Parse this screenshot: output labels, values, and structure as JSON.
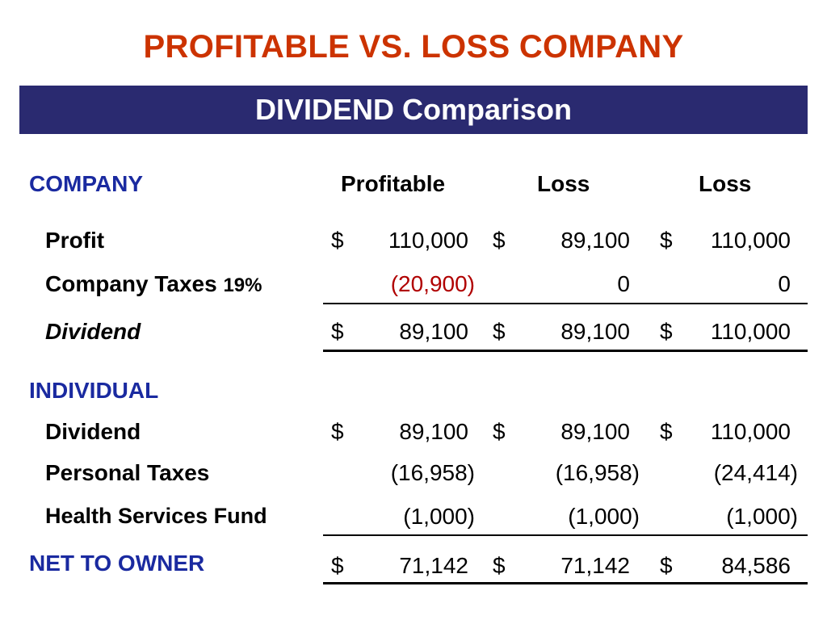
{
  "title": "PROFITABLE VS. LOSS COMPANY",
  "banner": "DIVIDEND Comparison",
  "header": {
    "label": "COMPANY",
    "cols": [
      "Profitable",
      "Loss",
      "Loss"
    ]
  },
  "company": {
    "profit": {
      "label": "Profit",
      "cur": [
        "$",
        "$",
        "$"
      ],
      "values": [
        "110,000",
        "89,100",
        "110,000"
      ]
    },
    "taxes": {
      "label": "Company Taxes",
      "rate": "19%",
      "values": [
        "(20,900)",
        "0",
        "0"
      ]
    },
    "dividend": {
      "label": "Dividend",
      "cur": [
        "$",
        "$",
        "$"
      ],
      "values": [
        "89,100",
        "89,100",
        "110,000"
      ]
    }
  },
  "individual": {
    "label": "INDIVIDUAL",
    "dividend": {
      "label": "Dividend",
      "cur": [
        "$",
        "$",
        "$"
      ],
      "values": [
        "89,100",
        "89,100",
        "110,000"
      ]
    },
    "personal_taxes": {
      "label": "Personal Taxes",
      "values": [
        "(16,958)",
        "(16,958)",
        "(24,414)"
      ]
    },
    "health": {
      "label": "Health Services Fund",
      "values": [
        "(1,000)",
        "(1,000)",
        "(1,000)"
      ]
    }
  },
  "net": {
    "label": "NET TO OWNER",
    "cur": [
      "$",
      "$",
      "$"
    ],
    "values": [
      "71,142",
      "71,142",
      "84,586"
    ]
  },
  "colors": {
    "title": "#cc3300",
    "banner": "#2a2a70",
    "section": "#1a2aa0",
    "negative": "#b00000"
  }
}
